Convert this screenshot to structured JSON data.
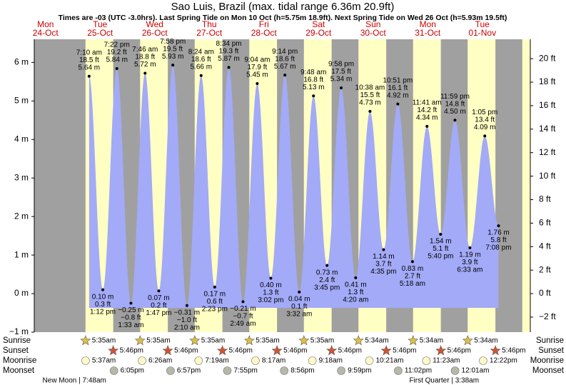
{
  "chart_data": {
    "type": "area",
    "title": "Sao Luis, Brazil (max. tidal range 6.36m 20.9ft)",
    "subtitle": "Times are -03 (UTC -3.0hrs). Last Spring Tide on Mon 10 Oct (h=5.75m 18.9ft). Next Spring Tide on Wed 26 Oct (h=5.93m 19.5ft)",
    "ylim": [
      -1,
      6.6
    ],
    "yticks": [
      {
        "value": -1,
        "label": "−1 m"
      },
      {
        "value": 0,
        "label": "0 m"
      },
      {
        "value": 1,
        "label": "1 m"
      },
      {
        "value": 2,
        "label": "2 m"
      },
      {
        "value": 3,
        "label": "3 m"
      },
      {
        "value": 4,
        "label": "4 m"
      },
      {
        "value": 5,
        "label": "5 m"
      },
      {
        "value": 6,
        "label": "6 m"
      }
    ],
    "y2lim": [
      -3.28,
      21.65
    ],
    "y2ticks": [
      {
        "value": -2,
        "label": "−2 ft"
      },
      {
        "value": 0,
        "label": "0 ft"
      },
      {
        "value": 2,
        "label": "2 ft"
      },
      {
        "value": 4,
        "label": "4 ft"
      },
      {
        "value": 6,
        "label": "6 ft"
      },
      {
        "value": 8,
        "label": "8 ft"
      },
      {
        "value": 10,
        "label": "10 ft"
      },
      {
        "value": 12,
        "label": "12 ft"
      },
      {
        "value": 14,
        "label": "14 ft"
      },
      {
        "value": 16,
        "label": "16 ft"
      },
      {
        "value": 18,
        "label": "18 ft"
      },
      {
        "value": 20,
        "label": "20 ft"
      }
    ],
    "colors": {
      "tide": "#a3aaf7",
      "night": "#a0a0a0",
      "day": "#ffffc4",
      "date": "#cc0000"
    },
    "row_labels": {
      "sunrise": "Sunrise",
      "sunset": "Sunset",
      "moonrise": "Moonrise",
      "moonset": "Moonset"
    },
    "days": [
      {
        "weekday": "Mon",
        "date": "24-Oct",
        "tides": []
      },
      {
        "weekday": "Tue",
        "date": "25-Oct",
        "sunrise": "5:35am",
        "sunset": "5:46pm",
        "moonrise": "5:37am",
        "moonset": "6:05pm",
        "phase": "New Moon | 7:48am",
        "tides": [
          {
            "time": "7:10 am",
            "height": 5.64,
            "height_label": "5.64 m",
            "feet_label": "18.5 ft"
          },
          {
            "time": "1:12 pm",
            "height": 0.1,
            "height_label": "0.10 m",
            "feet_label": "0.3 ft"
          },
          {
            "time": "7:22 pm",
            "height": 5.84,
            "height_label": "5.84 m",
            "feet_label": "19.2 ft"
          }
        ]
      },
      {
        "weekday": "Wed",
        "date": "26-Oct",
        "sunrise": "5:35am",
        "sunset": "5:46pm",
        "moonrise": "6:26am",
        "moonset": "6:57pm",
        "tides": [
          {
            "time": "1:33 am",
            "height": -0.25,
            "height_label": "−0.25 m",
            "feet_label": "−0.8 ft"
          },
          {
            "time": "7:46 am",
            "height": 5.72,
            "height_label": "5.72 m",
            "feet_label": "18.8 ft"
          },
          {
            "time": "1:47 pm",
            "height": 0.07,
            "height_label": "0.07 m",
            "feet_label": "0.2 ft"
          },
          {
            "time": "7:58 pm",
            "height": 5.93,
            "height_label": "5.93 m",
            "feet_label": "19.5 ft"
          }
        ]
      },
      {
        "weekday": "Thu",
        "date": "27-Oct",
        "sunrise": "5:35am",
        "sunset": "5:46pm",
        "moonrise": "7:19am",
        "moonset": "7:55pm",
        "tides": [
          {
            "time": "2:10 am",
            "height": -0.31,
            "height_label": "−0.31 m",
            "feet_label": "−1.0 ft"
          },
          {
            "time": "8:24 am",
            "height": 5.66,
            "height_label": "5.66 m",
            "feet_label": "18.6 ft"
          },
          {
            "time": "2:23 pm",
            "height": 0.17,
            "height_label": "0.17 m",
            "feet_label": "0.6 ft"
          },
          {
            "time": "8:34 pm",
            "height": 5.87,
            "height_label": "5.87 m",
            "feet_label": "19.3 ft"
          }
        ]
      },
      {
        "weekday": "Fri",
        "date": "28-Oct",
        "sunrise": "5:35am",
        "sunset": "5:46pm",
        "moonrise": "8:17am",
        "moonset": "8:56pm",
        "tides": [
          {
            "time": "2:49 am",
            "height": -0.21,
            "height_label": "−0.21 m",
            "feet_label": "−0.7 ft"
          },
          {
            "time": "9:04 am",
            "height": 5.45,
            "height_label": "5.45 m",
            "feet_label": "17.9 ft"
          },
          {
            "time": "3:02 pm",
            "height": 0.4,
            "height_label": "0.40 m",
            "feet_label": "1.3 ft"
          },
          {
            "time": "9:14 pm",
            "height": 5.67,
            "height_label": "5.67 m",
            "feet_label": "18.6 ft"
          }
        ]
      },
      {
        "weekday": "Sat",
        "date": "29-Oct",
        "sunrise": "5:35am",
        "sunset": "5:46pm",
        "moonrise": "9:18am",
        "moonset": "9:59pm",
        "tides": [
          {
            "time": "3:32 am",
            "height": 0.04,
            "height_label": "0.04 m",
            "feet_label": "0.1 ft"
          },
          {
            "time": "9:48 am",
            "height": 5.13,
            "height_label": "5.13 m",
            "feet_label": "16.8 ft"
          },
          {
            "time": "3:45 pm",
            "height": 0.73,
            "height_label": "0.73 m",
            "feet_label": "2.4 ft"
          },
          {
            "time": "9:58 pm",
            "height": 5.34,
            "height_label": "5.34 m",
            "feet_label": "17.5 ft"
          }
        ]
      },
      {
        "weekday": "Sun",
        "date": "30-Oct",
        "sunrise": "5:34am",
        "sunset": "5:46pm",
        "moonrise": "10:21am",
        "moonset": "11:02pm",
        "tides": [
          {
            "time": "4:20 am",
            "height": 0.41,
            "height_label": "0.41 m",
            "feet_label": "1.3 ft"
          },
          {
            "time": "10:38 am",
            "height": 4.73,
            "height_label": "4.73 m",
            "feet_label": "15.5 ft"
          },
          {
            "time": "4:35 pm",
            "height": 1.14,
            "height_label": "1.14 m",
            "feet_label": "3.7 ft"
          },
          {
            "time": "10:51 pm",
            "height": 4.92,
            "height_label": "4.92 m",
            "feet_label": "16.1 ft"
          }
        ]
      },
      {
        "weekday": "Mon",
        "date": "31-Oct",
        "sunrise": "5:34am",
        "sunset": "5:46pm",
        "moonrise": "11:23am",
        "tides": [
          {
            "time": "5:18 am",
            "height": 0.83,
            "height_label": "0.83 m",
            "feet_label": "2.7 ft"
          },
          {
            "time": "11:41 am",
            "height": 4.34,
            "height_label": "4.34 m",
            "feet_label": "14.2 ft"
          },
          {
            "time": "5:40 pm",
            "height": 1.54,
            "height_label": "1.54 m",
            "feet_label": "5.1 ft"
          },
          {
            "time": "11:59 pm",
            "height": 4.5,
            "height_label": "4.50 m",
            "feet_label": "14.8 ft"
          }
        ]
      },
      {
        "weekday": "Tue",
        "date": "01-Nov",
        "sunrise": "5:34am",
        "sunset": "5:46pm",
        "moonrise": "12:22pm",
        "moonset": "12:01am",
        "phase": "First Quarter | 3:38am",
        "tides": [
          {
            "time": "6:33 am",
            "height": 1.19,
            "height_label": "1.19 m",
            "feet_label": "3.9 ft"
          },
          {
            "time": "1:05 pm",
            "height": 4.09,
            "height_label": "4.09 m",
            "feet_label": "13.4 ft"
          },
          {
            "time": "7:08 pm",
            "height": 1.76,
            "height_label": "1.76 m",
            "feet_label": "5.8 ft"
          }
        ]
      }
    ]
  }
}
